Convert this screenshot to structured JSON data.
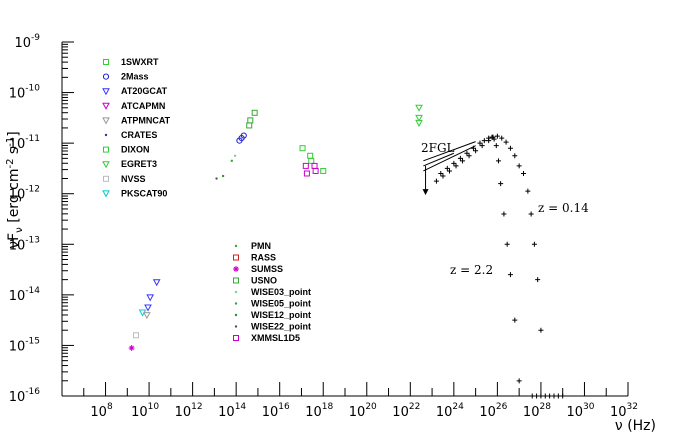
{
  "chart_data": {
    "type": "scatter",
    "xlabel": "ν (Hz)",
    "ylabel": "νF_ν [erg cm^-2 s^-1]",
    "xscale": "log",
    "yscale": "log",
    "xlim_exp": [
      6,
      32
    ],
    "ylim_exp": [
      -16,
      -9
    ],
    "grid": false,
    "x_tick_exponents": [
      8,
      10,
      12,
      14,
      16,
      18,
      20,
      22,
      24,
      26,
      28,
      30,
      32
    ],
    "y_tick_exponents": [
      -16,
      -15,
      -14,
      -13,
      -12,
      -11,
      -10,
      -9
    ],
    "legend_upper": [
      {
        "name": "1SWXRT",
        "color": "#33cc33",
        "marker": "square"
      },
      {
        "name": "2Mass",
        "color": "#2222cc",
        "marker": "circle"
      },
      {
        "name": "AT20GCAT",
        "color": "#3333ff",
        "marker": "triangle-down"
      },
      {
        "name": "ATCAPMN",
        "color": "#cc00cc",
        "marker": "triangle-down"
      },
      {
        "name": "ATPMNCAT",
        "color": "#999999",
        "marker": "triangle-down"
      },
      {
        "name": "CRATES",
        "color": "#3333aa",
        "marker": "dot"
      },
      {
        "name": "DIXON",
        "color": "#33cc33",
        "marker": "square"
      },
      {
        "name": "EGRET3",
        "color": "#33cc33",
        "marker": "triangle-down"
      },
      {
        "name": "NVSS",
        "color": "#bbbbbb",
        "marker": "square"
      },
      {
        "name": "PKSCAT90",
        "color": "#00cccc",
        "marker": "triangle-down"
      }
    ],
    "legend_lower": [
      {
        "name": "PMN",
        "color": "#33aa33",
        "marker": "dot"
      },
      {
        "name": "RASS",
        "color": "#cc2222",
        "marker": "square"
      },
      {
        "name": "SUMSS",
        "color": "#cc00cc",
        "marker": "star"
      },
      {
        "name": "USNO",
        "color": "#33aa33",
        "marker": "square"
      },
      {
        "name": "WISE03_point",
        "color": "#88cc88",
        "marker": "dot"
      },
      {
        "name": "WISE05_point",
        "color": "#33aa33",
        "marker": "dot"
      },
      {
        "name": "WISE12_point",
        "color": "#338833",
        "marker": "dot"
      },
      {
        "name": "WISE22_point",
        "color": "#555555",
        "marker": "dot"
      },
      {
        "name": "XMMSL1D5",
        "color": "#cc00cc",
        "marker": "square"
      }
    ],
    "points": [
      {
        "series": "SUMSS",
        "x": 9.2,
        "y": -15.05,
        "color": "#cc00cc",
        "marker": "star"
      },
      {
        "series": "NVSS",
        "x": 9.4,
        "y": -14.8,
        "color": "#bbbbbb",
        "marker": "square"
      },
      {
        "series": "PKSCAT90",
        "x": 9.7,
        "y": -14.35,
        "color": "#00cccc",
        "marker": "triangle-down"
      },
      {
        "series": "ATPMNCAT",
        "x": 9.9,
        "y": -14.4,
        "color": "#999999",
        "marker": "triangle-down"
      },
      {
        "series": "AT20GCAT",
        "x": 9.95,
        "y": -14.25,
        "color": "#3333ff",
        "marker": "triangle-down"
      },
      {
        "series": "AT20GCAT",
        "x": 10.05,
        "y": -14.05,
        "color": "#3333ff",
        "marker": "triangle-down"
      },
      {
        "series": "AT20GCAT",
        "x": 10.35,
        "y": -13.75,
        "color": "#3333ff",
        "marker": "triangle-down"
      },
      {
        "series": "WISE22_point",
        "x": 13.1,
        "y": -11.7,
        "color": "#555555",
        "marker": "dot"
      },
      {
        "series": "WISE12_point",
        "x": 13.4,
        "y": -11.65,
        "color": "#338833",
        "marker": "dot"
      },
      {
        "series": "WISE05_point",
        "x": 13.8,
        "y": -11.35,
        "color": "#33aa33",
        "marker": "dot"
      },
      {
        "series": "WISE03_point",
        "x": 13.95,
        "y": -11.25,
        "color": "#88cc88",
        "marker": "dot"
      },
      {
        "series": "2Mass",
        "x": 14.15,
        "y": -10.95,
        "color": "#2222cc",
        "marker": "circle"
      },
      {
        "series": "2Mass",
        "x": 14.25,
        "y": -10.9,
        "color": "#2222cc",
        "marker": "circle"
      },
      {
        "series": "2Mass",
        "x": 14.35,
        "y": -10.85,
        "color": "#2222cc",
        "marker": "circle"
      },
      {
        "series": "USNO",
        "x": 14.6,
        "y": -10.65,
        "color": "#33aa33",
        "marker": "square"
      },
      {
        "series": "USNO",
        "x": 14.65,
        "y": -10.55,
        "color": "#33aa33",
        "marker": "square"
      },
      {
        "series": "USNO",
        "x": 14.85,
        "y": -10.4,
        "color": "#33aa33",
        "marker": "square"
      },
      {
        "series": "1SWXRT",
        "x": 17.05,
        "y": -11.1,
        "color": "#33cc33",
        "marker": "square"
      },
      {
        "series": "1SWXRT",
        "x": 17.4,
        "y": -11.25,
        "color": "#33cc33",
        "marker": "square"
      },
      {
        "series": "1SWXRT",
        "x": 17.45,
        "y": -11.35,
        "color": "#33cc33",
        "marker": "square"
      },
      {
        "series": "1SWXRT",
        "x": 18.0,
        "y": -11.55,
        "color": "#33cc33",
        "marker": "square"
      },
      {
        "series": "XMMSL1D5",
        "x": 17.2,
        "y": -11.45,
        "color": "#cc00cc",
        "marker": "square"
      },
      {
        "series": "XMMSL1D5",
        "x": 17.25,
        "y": -11.6,
        "color": "#cc00cc",
        "marker": "square"
      },
      {
        "series": "XMMSL1D5",
        "x": 17.6,
        "y": -11.45,
        "color": "#cc00cc",
        "marker": "square"
      },
      {
        "series": "XMMSL1D5",
        "x": 17.65,
        "y": -11.55,
        "color": "#cc00cc",
        "marker": "square"
      },
      {
        "series": "EGRET3",
        "x": 22.4,
        "y": -10.3,
        "color": "#33cc33",
        "marker": "triangle-down"
      },
      {
        "series": "EGRET3",
        "x": 22.4,
        "y": -10.5,
        "color": "#33cc33",
        "marker": "triangle-down"
      },
      {
        "series": "EGRET3",
        "x": 22.4,
        "y": -10.6,
        "color": "#33cc33",
        "marker": "triangle-down"
      }
    ],
    "fermi_bowtie": {
      "label": "2FGL",
      "upper_limit": {
        "x": 22.7,
        "y_from": -11.45,
        "y_to": -11.95
      }
    },
    "models": [
      {
        "label": "z = 0.14",
        "x": [
          23.2,
          23.5,
          23.8,
          24.1,
          24.4,
          24.7,
          25.0,
          25.3,
          25.6,
          25.8,
          26.0,
          26.2,
          26.4,
          26.6,
          26.8,
          27.0,
          27.2,
          27.4,
          27.55,
          27.7,
          27.85,
          28.0
        ],
        "y": [
          -11.75,
          -11.65,
          -11.55,
          -11.45,
          -11.35,
          -11.25,
          -11.15,
          -11.05,
          -10.95,
          -10.88,
          -10.86,
          -10.9,
          -10.98,
          -11.1,
          -11.25,
          -11.45,
          -11.6,
          -11.95,
          -12.4,
          -13.0,
          -13.7,
          -14.7
        ]
      },
      {
        "label": "z = 2.2",
        "x": [
          23.4,
          23.7,
          24.0,
          24.3,
          24.6,
          24.9,
          25.2,
          25.4,
          25.6,
          25.75,
          25.85,
          25.95,
          26.05,
          26.15,
          26.3,
          26.45,
          26.6,
          26.8,
          27.0
        ],
        "y": [
          -11.6,
          -11.5,
          -11.4,
          -11.3,
          -11.2,
          -11.1,
          -11.0,
          -10.95,
          -10.9,
          -10.88,
          -10.92,
          -11.05,
          -11.35,
          -11.8,
          -12.4,
          -13.0,
          -13.6,
          -14.5,
          -15.7
        ]
      },
      {
        "label": "",
        "x": [
          27.6,
          27.8,
          28.0,
          28.2,
          28.4,
          28.6,
          28.8,
          29.0
        ],
        "y": [
          -16.0,
          -16.0,
          -16.0,
          -16.0,
          -16.0,
          -16.0,
          -16.0,
          -16.0
        ]
      }
    ]
  }
}
